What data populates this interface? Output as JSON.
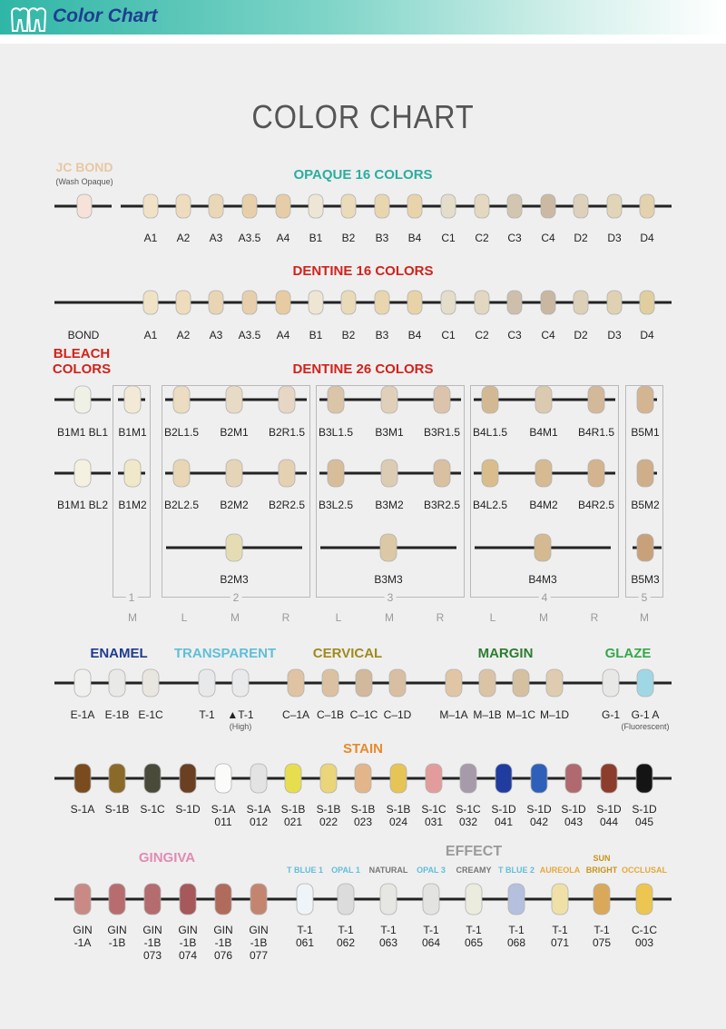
{
  "header": {
    "title": "Color Chart"
  },
  "title": "COLOR CHART",
  "headings": {
    "jc_bond": "JC BOND",
    "jc_bond_sub": "(Wash Opaque)",
    "opaque": "OPAQUE 16 COLORS",
    "dentine16": "DENTINE 16 COLORS",
    "bleach_1": "BLEACH",
    "bleach_2": "COLORS",
    "dentine26": "DENTINE 26 COLORS",
    "enamel": "ENAMEL",
    "transparent": "TRANSPARENT",
    "cervical": "CERVICAL",
    "margin": "MARGIN",
    "glaze": "GLAZE",
    "stain": "STAIN",
    "gingiva": "GINGIVA",
    "effect": "EFFECT"
  },
  "colors": {
    "header_text": "#1d3f91",
    "opaque_heading": "#2aaea0",
    "red_heading": "#d0231c",
    "enamel": "#1e3b8f",
    "transparent": "#5fbfd9",
    "cervical": "#a08a1d",
    "margin": "#2c7d2f",
    "glaze": "#35a84a",
    "stain": "#e88a2a",
    "gingiva": "#e08bb4",
    "effect": "#9a9a9a",
    "jc_bond": "#e8c7a4"
  },
  "jc_bond": {
    "swatch": "#f6e2d8"
  },
  "opaque": {
    "labels": [
      "A1",
      "A2",
      "A3",
      "A3.5",
      "A4",
      "B1",
      "B2",
      "B3",
      "B4",
      "C1",
      "C2",
      "C3",
      "C4",
      "D2",
      "D3",
      "D4"
    ],
    "swatches": [
      "#f1e1c6",
      "#efdcbe",
      "#ead7b7",
      "#e7cfa9",
      "#e6cda7",
      "#eee6d4",
      "#eadbb9",
      "#e9d6af",
      "#e8d3ab",
      "#e4ddca",
      "#e4d8c0",
      "#d2c6b0",
      "#cbb9a3",
      "#ddd1bb",
      "#e1d4b7",
      "#e4d1ad"
    ]
  },
  "dentine16": {
    "bond": "BOND",
    "labels": [
      "A1",
      "A2",
      "A3",
      "A3.5",
      "A4",
      "B1",
      "B2",
      "B3",
      "B4",
      "C1",
      "C2",
      "C3",
      "C4",
      "D2",
      "D3",
      "D4"
    ],
    "swatches": [
      "#f0e2c5",
      "#efdcbd",
      "#e9d5b4",
      "#e7cfab",
      "#e7cca3",
      "#eee6d3",
      "#e9dbb8",
      "#e9d6ae",
      "#e8d3a8",
      "#e4ddca",
      "#e2d7c0",
      "#cdbfac",
      "#c9b7a2",
      "#ddd0b8",
      "#dfd1b2",
      "#e1ce9f"
    ]
  },
  "bleach": {
    "items": [
      {
        "label": "B1M1 BL1",
        "swatch": "#f0f1e6"
      },
      {
        "label": "B1M1",
        "swatch": "#f2ead6"
      },
      {
        "label": "B1M1 BL2",
        "swatch": "#f4f1e1"
      },
      {
        "label": "B1M2",
        "swatch": "#f0e8c8"
      }
    ]
  },
  "dentine26": {
    "row1": [
      {
        "label": "B2L1.5",
        "swatch": "#ebdcc2"
      },
      {
        "label": "B2M1",
        "swatch": "#e8dbc6"
      },
      {
        "label": "B2R1.5",
        "swatch": "#e7d6c4"
      },
      {
        "label": "B3L1.5",
        "swatch": "#dac5a8"
      },
      {
        "label": "B3M1",
        "swatch": "#e1d0b9"
      },
      {
        "label": "B3R1.5",
        "swatch": "#dcc4ac"
      },
      {
        "label": "B4L1.5",
        "swatch": "#d3b993"
      },
      {
        "label": "B4M1",
        "swatch": "#dccab0"
      },
      {
        "label": "B4R1.5",
        "swatch": "#d3b99a"
      },
      {
        "label": "B5M1",
        "swatch": "#d4b592"
      }
    ],
    "row2": [
      {
        "label": "B2L2.5",
        "swatch": "#e8d6b4"
      },
      {
        "label": "B2M2",
        "swatch": "#e6d4b8"
      },
      {
        "label": "B2R2.5",
        "swatch": "#e5d0b2"
      },
      {
        "label": "B3L2.5",
        "swatch": "#d8bd9a"
      },
      {
        "label": "B3M2",
        "swatch": "#ddccb4"
      },
      {
        "label": "B3R2.5",
        "swatch": "#d9c0a0"
      },
      {
        "label": "B4L2.5",
        "swatch": "#d9bd8d"
      },
      {
        "label": "B4M2",
        "swatch": "#d5ba92"
      },
      {
        "label": "B4R2.5",
        "swatch": "#d4b48e"
      },
      {
        "label": "B5M2",
        "swatch": "#cfae8a"
      }
    ],
    "row3": [
      {
        "label": "B2M3",
        "swatch": "#e6dcb4"
      },
      {
        "label": "B3M3",
        "swatch": "#dcc8a4"
      },
      {
        "label": "B4M3",
        "swatch": "#d5b990"
      },
      {
        "label": "B5M3",
        "swatch": "#c8a17b"
      }
    ],
    "groups": [
      "1",
      "2",
      "3",
      "4",
      "5"
    ],
    "sub_labels": [
      "M",
      "L",
      "M",
      "R",
      "L",
      "M",
      "R",
      "L",
      "M",
      "R",
      "M"
    ]
  },
  "enamel": {
    "labels": [
      "E-1A",
      "E-1B",
      "E-1C"
    ],
    "swatches": [
      "#f0f0ee",
      "#e9e9e7",
      "#e8e6df"
    ]
  },
  "transparent": {
    "labels": [
      "T-1",
      "▲T-1"
    ],
    "sub": "(High)",
    "swatches": [
      "#e8e9ea",
      "#e9eaeb"
    ]
  },
  "cervical": {
    "labels": [
      "C–1A",
      "C–1B",
      "C–1C",
      "C–1D"
    ],
    "swatches": [
      "#dfc3a2",
      "#dbc1a2",
      "#d2b89c",
      "#d9bfa1"
    ]
  },
  "margin": {
    "labels": [
      "M–1A",
      "M–1B",
      "M–1C",
      "M–1D"
    ],
    "swatches": [
      "#e0c6a5",
      "#dbc4a6",
      "#d6c0a2",
      "#dfccb0"
    ]
  },
  "glaze": {
    "labels": [
      "G-1",
      "G-1 A"
    ],
    "sub": "(Fluorescent)",
    "swatches": [
      "#e8e8e6",
      "#9fd8e4"
    ]
  },
  "stain": {
    "labels": [
      "S-1A",
      "S-1B",
      "S-1C",
      "S-1D",
      "S-1A 011",
      "S-1A 012",
      "S-1B 021",
      "S-1B 022",
      "S-1B 023",
      "S-1B 024",
      "S-1C 031",
      "S-1C 032",
      "S-1D 041",
      "S-1D 042",
      "S-1D 043",
      "S-1D 044",
      "S-1D 045"
    ],
    "swatches": [
      "#7a4b1f",
      "#8a6a28",
      "#4a4a3a",
      "#6b3f22",
      "#fbfbfa",
      "#e3e3e3",
      "#e6de4e",
      "#ead57a",
      "#e3b58b",
      "#e6c456",
      "#e39c9c",
      "#a79aab",
      "#1f3c9e",
      "#2e5fb9",
      "#b0696f",
      "#8c3d2c",
      "#141414"
    ]
  },
  "gingiva": {
    "labels": [
      "GIN -1A",
      "GIN -1B",
      "GIN -1B 073",
      "GIN -1B 074",
      "GIN -1B 076",
      "GIN -1B 077"
    ],
    "swatches": [
      "#c98a86",
      "#b76d70",
      "#b46c6e",
      "#a6585b",
      "#b16b5d",
      "#c48570"
    ]
  },
  "effect": {
    "names": [
      "T BLUE 1",
      "OPAL 1",
      "NATURAL",
      "OPAL 3",
      "CREAMY",
      "T BLUE 2",
      "AUREOLA",
      "SUN BRIGHT",
      "OCCLUSAL"
    ],
    "name_colors": [
      "#5fbfd9",
      "#5fbfd9",
      "#777777",
      "#5fbfd9",
      "#777777",
      "#5fbfd9",
      "#e6a93a",
      "#c9951e",
      "#e6a93a"
    ],
    "labels": [
      "T-1 061",
      "T-1 062",
      "T-1 063",
      "T-1 064",
      "T-1 065",
      "T-1 068",
      "T-1 071",
      "T-1 075",
      "C-1C 003"
    ],
    "swatches": [
      "#eef4f8",
      "#dcdcdc",
      "#e6e6e2",
      "#e3e3e1",
      "#ececde",
      "#b4c0de",
      "#efe0a8",
      "#d9a85a",
      "#ecc650"
    ]
  }
}
